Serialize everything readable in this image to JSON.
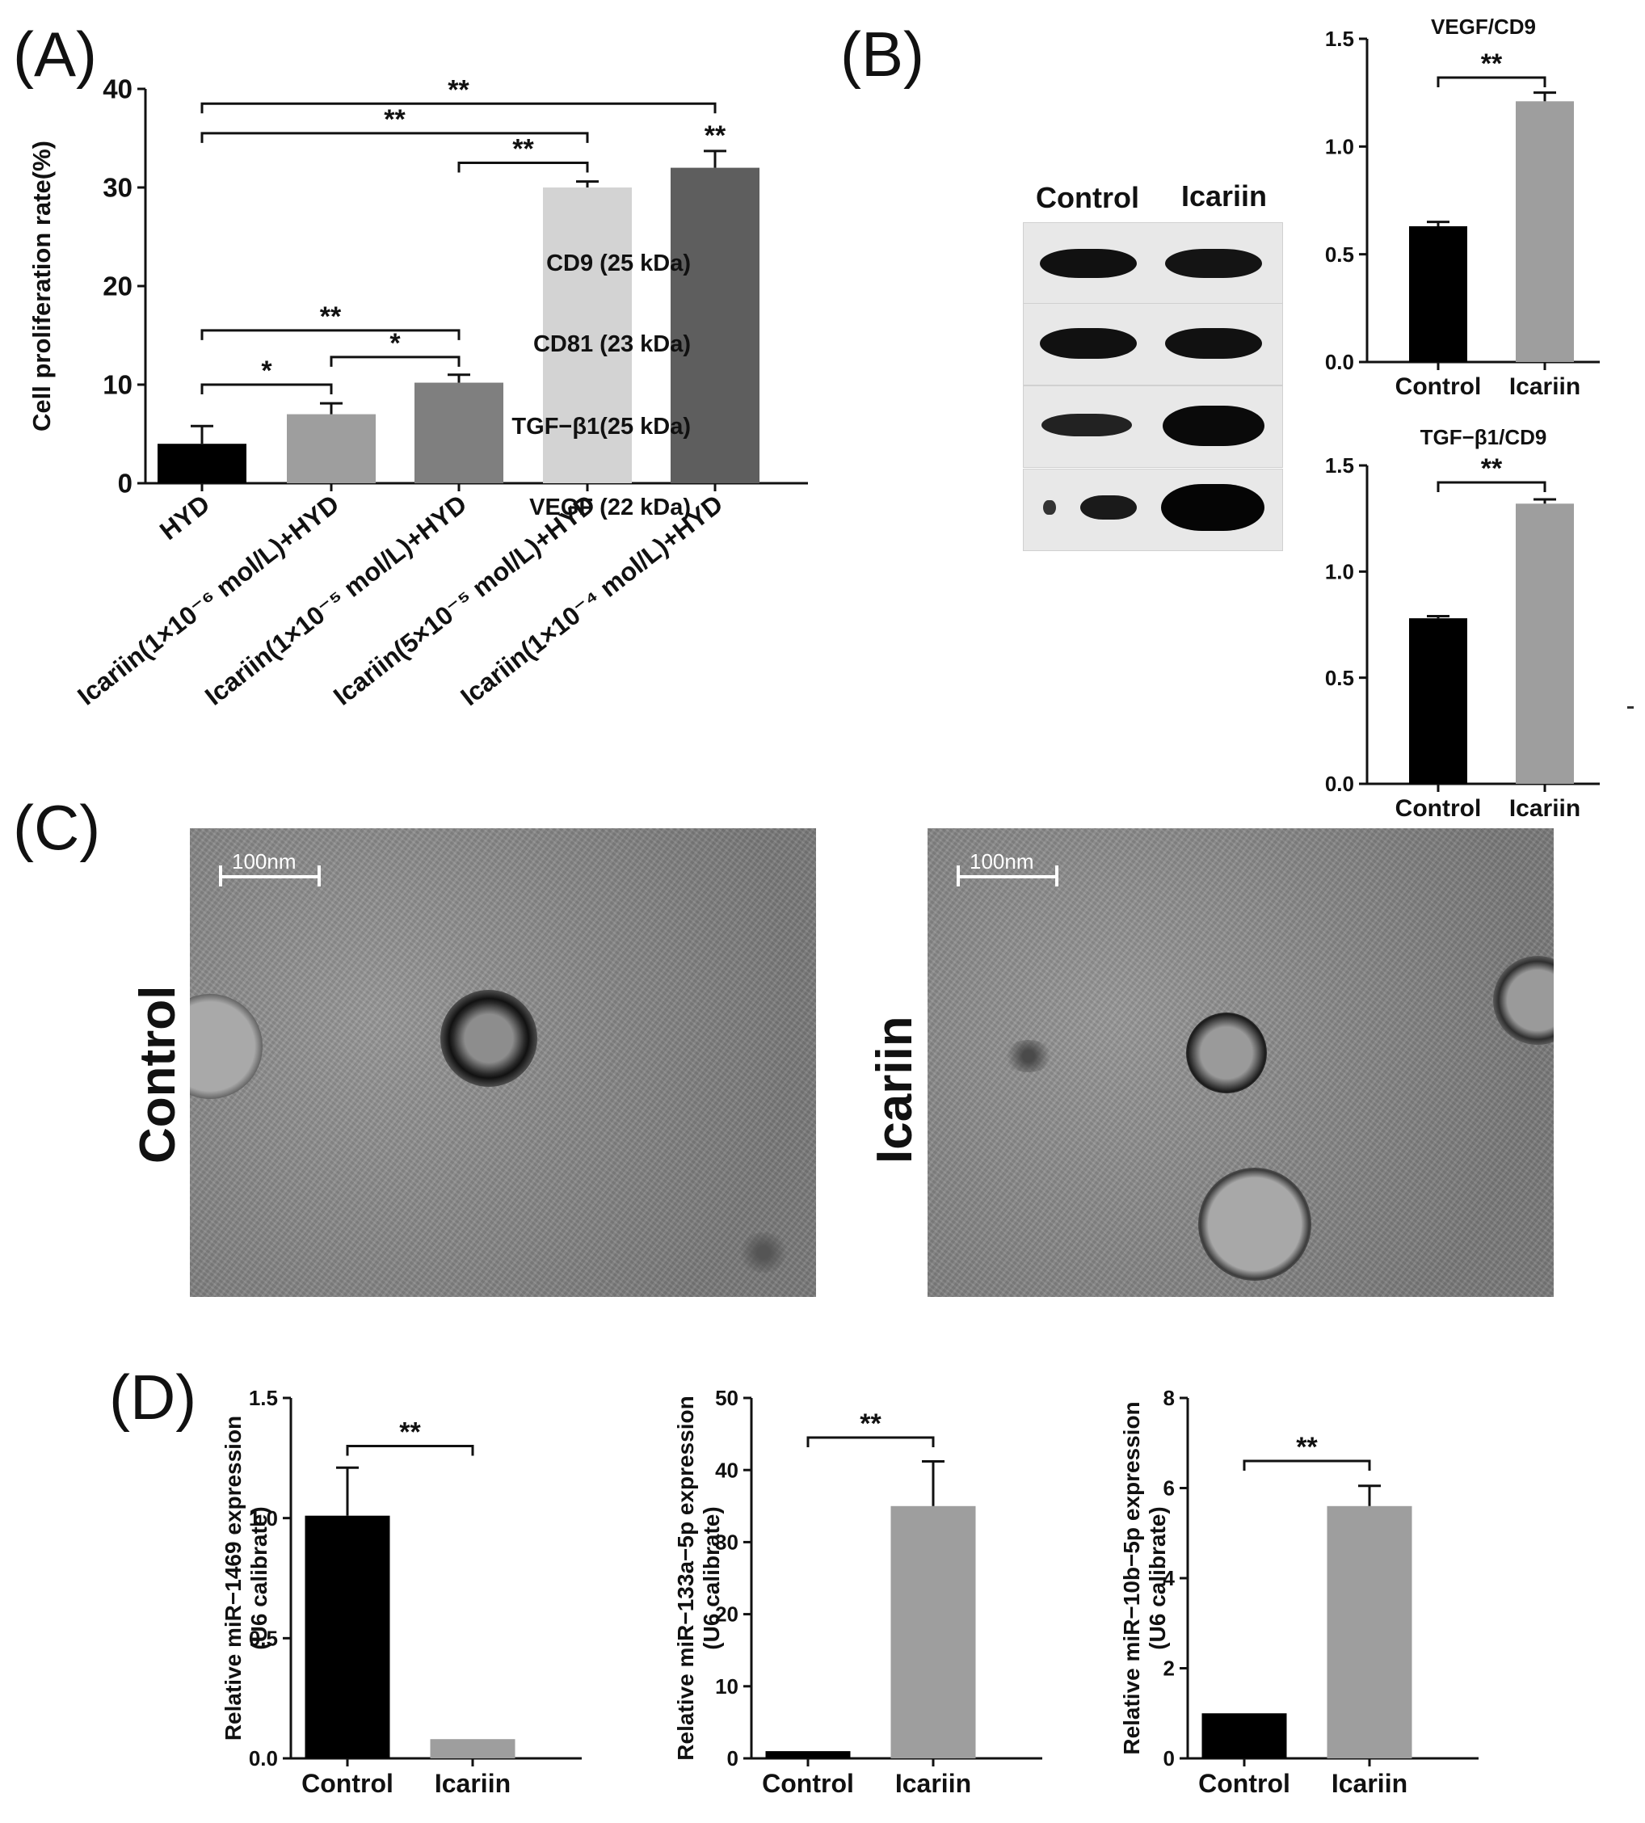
{
  "panels": {
    "a": "(A)",
    "b": "(B)",
    "c": "(C)",
    "d": "(D)"
  },
  "western_blot": {
    "headers": [
      "Control",
      "Icariin"
    ],
    "rows": [
      "CD9 (25 kDa)",
      "CD81 (23 kDa)",
      "TGF−β1(25 kDa)",
      "VEGF (22 kDa)"
    ]
  },
  "tem": {
    "scale_label": "100nm",
    "images": [
      {
        "label": "Control"
      },
      {
        "label": "Icariin"
      }
    ]
  },
  "colors": {
    "black": "#000000",
    "gray": "#9e9e9e"
  },
  "chart_data": [
    {
      "id": "A",
      "type": "bar",
      "ylabel": "Cell proliferation rate(%)",
      "ylim": [
        0,
        40
      ],
      "yticks": [
        0,
        10,
        20,
        30,
        40
      ],
      "categories": [
        "HYD",
        "Icariin(1×10⁻⁶ mol/L)+HYD",
        "Icariin(1×10⁻⁵ mol/L)+HYD",
        "Icariin(5×10⁻⁵ mol/L)+HYD",
        "Icariin(1×10⁻⁴ mol/L)+HYD"
      ],
      "values": [
        4.0,
        7.0,
        10.2,
        30.0,
        32.0
      ],
      "errors": [
        1.8,
        1.1,
        0.8,
        0.6,
        1.7
      ],
      "colors": [
        "#000000",
        "#9e9e9e",
        "#7f7f7f",
        "#d3d3d3",
        "#5e5e5e"
      ],
      "above_bar": [
        "",
        "",
        "",
        "",
        "**"
      ],
      "brackets": [
        {
          "from": 0,
          "to": 4,
          "label": "**",
          "y": 38.5
        },
        {
          "from": 0,
          "to": 3,
          "label": "**",
          "y": 35.5
        },
        {
          "from": 2,
          "to": 3,
          "label": "**",
          "y": 32.5
        },
        {
          "from": 0,
          "to": 2,
          "label": "**",
          "y": 15.5
        },
        {
          "from": 1,
          "to": 2,
          "label": "*",
          "y": 12.8
        },
        {
          "from": 0,
          "to": 1,
          "label": "*",
          "y": 10.0
        }
      ]
    },
    {
      "id": "B1",
      "type": "bar",
      "title": "VEGF/CD9",
      "ylim": [
        0,
        1.5
      ],
      "yticks": [
        "0.0",
        "0.5",
        "1.0",
        "1.5"
      ],
      "categories": [
        "Control",
        "Icariin"
      ],
      "values": [
        0.63,
        1.21
      ],
      "errors": [
        0.02,
        0.04
      ],
      "colors": [
        "#000000",
        "#9e9e9e"
      ],
      "brackets": [
        {
          "from": 0,
          "to": 1,
          "label": "**",
          "y": 1.32
        }
      ]
    },
    {
      "id": "B2",
      "type": "bar",
      "title": "TGF−β1/CD9",
      "ylim": [
        0,
        1.5
      ],
      "yticks": [
        "0.0",
        "0.5",
        "1.0",
        "1.5"
      ],
      "categories": [
        "Control",
        "Icariin"
      ],
      "values": [
        0.78,
        1.32
      ],
      "errors": [
        0.01,
        0.02
      ],
      "colors": [
        "#000000",
        "#9e9e9e"
      ],
      "brackets": [
        {
          "from": 0,
          "to": 1,
          "label": "**",
          "y": 1.42
        }
      ]
    },
    {
      "id": "D1",
      "type": "bar",
      "ylabel": [
        "Relative miR−1469 expression",
        "(U6 calibrate)"
      ],
      "ylim": [
        0,
        1.5
      ],
      "yticks": [
        "0.0",
        "0.5",
        "1.0",
        "1.5"
      ],
      "categories": [
        "Control",
        "Icariin"
      ],
      "values": [
        1.01,
        0.08
      ],
      "errors": [
        0.2,
        0.0
      ],
      "colors": [
        "#000000",
        "#9e9e9e"
      ],
      "brackets": [
        {
          "from": 0,
          "to": 1,
          "label": "**",
          "y": 1.3
        }
      ]
    },
    {
      "id": "D2",
      "type": "bar",
      "ylabel": [
        "Relative miR−133a−5p expression",
        "(U6 calibrate)"
      ],
      "ylim": [
        0,
        50
      ],
      "yticks": [
        "0",
        "10",
        "20",
        "30",
        "40",
        "50"
      ],
      "categories": [
        "Control",
        "Icariin"
      ],
      "values": [
        1.0,
        35.0
      ],
      "errors": [
        0.0,
        6.2
      ],
      "colors": [
        "#000000",
        "#9e9e9e"
      ],
      "brackets": [
        {
          "from": 0,
          "to": 1,
          "label": "**",
          "y": 44.5
        }
      ]
    },
    {
      "id": "D3",
      "type": "bar",
      "ylabel": [
        "Relative miR−10b−5p expression",
        "(U6 calibrate)"
      ],
      "ylim": [
        0,
        8
      ],
      "yticks": [
        "0",
        "2",
        "4",
        "6",
        "8"
      ],
      "categories": [
        "Control",
        "Icariin"
      ],
      "values": [
        1.0,
        5.6
      ],
      "errors": [
        0.0,
        0.45
      ],
      "colors": [
        "#000000",
        "#9e9e9e"
      ],
      "brackets": [
        {
          "from": 0,
          "to": 1,
          "label": "**",
          "y": 6.6
        }
      ]
    }
  ]
}
